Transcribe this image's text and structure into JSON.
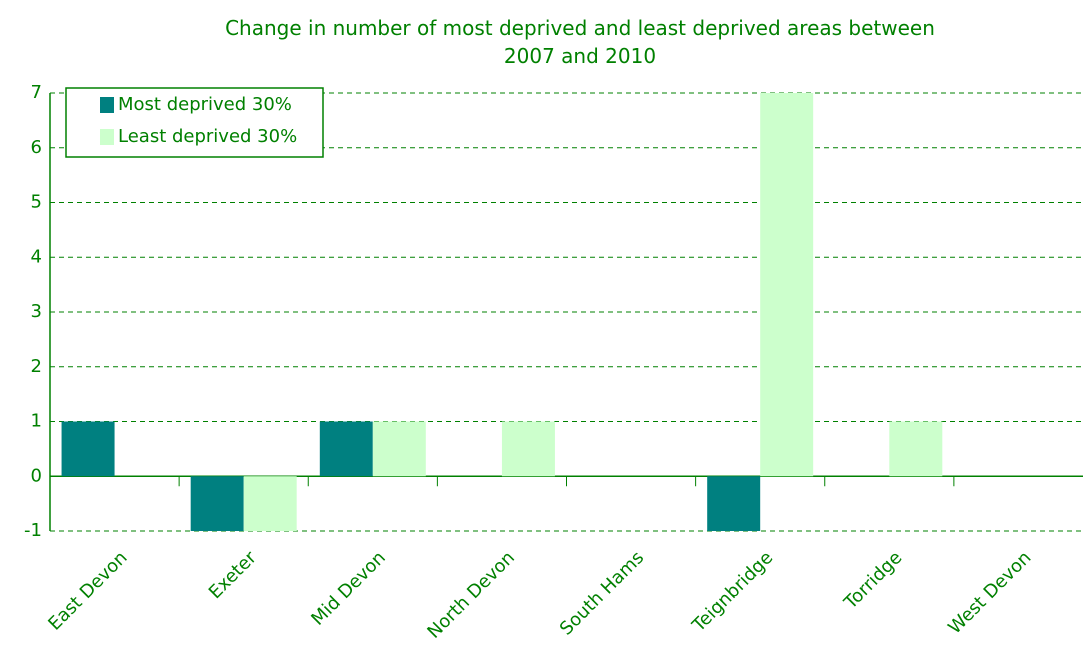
{
  "chart_data": {
    "type": "bar",
    "title": "Change in number of most deprived and least deprived areas between 2007 and 2010",
    "categories": [
      "East Devon",
      "Exeter",
      "Mid Devon",
      "North Devon",
      "South Hams",
      "Teignbridge",
      "Torridge",
      "West Devon"
    ],
    "series": [
      {
        "name": "Most deprived 30%",
        "color": "#008080",
        "values": [
          1,
          -1,
          1,
          0,
          0,
          -1,
          0,
          0
        ]
      },
      {
        "name": "Least deprived 30%",
        "color": "#ccffcc",
        "values": [
          0,
          -1,
          1,
          1,
          0,
          7,
          1,
          0
        ]
      }
    ],
    "ylim": [
      -1,
      7
    ],
    "yticks": [
      -1,
      0,
      1,
      2,
      3,
      4,
      5,
      6,
      7
    ],
    "grid": true,
    "legend": "top-left"
  }
}
